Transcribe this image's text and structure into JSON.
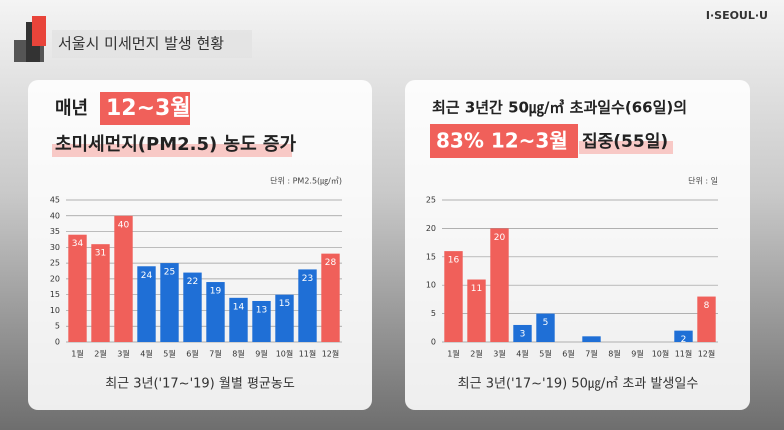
{
  "logo": "I·SEOUL·U",
  "header_title": "서울시 미세먼지 발생 현황",
  "chart_data": [
    {
      "type": "bar",
      "headline_1": "매년",
      "headline_highlight": "12~3월",
      "headline_2": "초미세먼지(PM2.5) 농도 증가",
      "unit": "단위 : PM2.5(㎍/㎥)",
      "caption": "최근 3년('17~'19) 월별 평균농도",
      "categories": [
        "1월",
        "2월",
        "3월",
        "4월",
        "5월",
        "6월",
        "7월",
        "8월",
        "9월",
        "10월",
        "11월",
        "12월"
      ],
      "values": [
        34,
        31,
        40,
        24,
        25,
        22,
        19,
        14,
        13,
        15,
        23,
        28
      ],
      "colors": [
        "#f0605a",
        "#f0605a",
        "#f0605a",
        "#1f6fd6",
        "#1f6fd6",
        "#1f6fd6",
        "#1f6fd6",
        "#1f6fd6",
        "#1f6fd6",
        "#1f6fd6",
        "#1f6fd6",
        "#f0605a"
      ],
      "ylim": [
        0,
        45
      ],
      "yticks": [
        0,
        5,
        10,
        15,
        20,
        25,
        30,
        35,
        40,
        45
      ],
      "grid": true
    },
    {
      "type": "bar",
      "headline_1": "최근 3년간 50㎍/㎥ 초과일수(66일)의",
      "headline_highlight": "83% 12~3월",
      "headline_2": "집중(55일)",
      "unit": "단위 : 일",
      "caption": "최근 3년('17~'19) 50㎍/㎥ 초과 발생일수",
      "categories": [
        "1월",
        "2월",
        "3월",
        "4월",
        "5월",
        "6월",
        "7월",
        "8월",
        "9월",
        "10월",
        "11월",
        "12월"
      ],
      "values": [
        16,
        11,
        20,
        3,
        5,
        0,
        1,
        0,
        0,
        0,
        2,
        8
      ],
      "value_labels": [
        "16",
        "11",
        "20",
        "3",
        "5",
        null,
        null,
        null,
        null,
        null,
        "2",
        "8"
      ],
      "colors": [
        "#f0605a",
        "#f0605a",
        "#f0605a",
        "#1f6fd6",
        "#1f6fd6",
        "#1f6fd6",
        "#1f6fd6",
        "#1f6fd6",
        "#1f6fd6",
        "#1f6fd6",
        "#1f6fd6",
        "#f0605a"
      ],
      "ylim": [
        0,
        25
      ],
      "yticks": [
        0,
        5,
        10,
        15,
        20,
        25
      ],
      "grid": true
    }
  ]
}
